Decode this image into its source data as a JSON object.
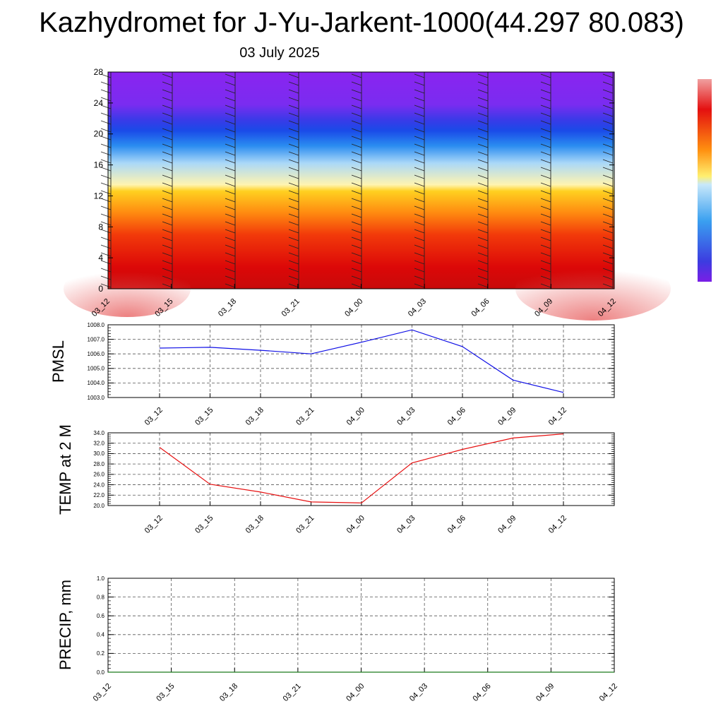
{
  "title": "Kazhydromet for J-Yu-Jarkent-1000(44.297 80.083)",
  "subtitle": "03 July 2025",
  "colors": {
    "pmsl_line": "#1010e6",
    "temp_line": "#e61010",
    "precip_line": "#1a7a1a",
    "grid": "#555555"
  },
  "chart_data": [
    {
      "type": "heatmap",
      "ylim": [
        0,
        28
      ],
      "yticks": [
        "0",
        "4",
        "8",
        "12",
        "16",
        "20",
        "24",
        "28"
      ],
      "x": [
        "03_12",
        "03_15",
        "03_18",
        "03_21",
        "04_00",
        "04_03",
        "04_06",
        "04_09",
        "04_12"
      ],
      "colorbar": "vertical, right, blue-violet (bottom) to red (top), no tick labels"
    },
    {
      "type": "line",
      "ylabel": "PMSL",
      "ylim": [
        1003.0,
        1008.0
      ],
      "yticks": [
        "1003.0",
        "1004.0",
        "1005.0",
        "1006.0",
        "1007.0",
        "1008.0"
      ],
      "x": [
        "03_12",
        "03_15",
        "03_18",
        "03_21",
        "04_00",
        "04_03",
        "04_06",
        "04_09",
        "04_12"
      ],
      "values": [
        1006.4,
        1006.45,
        1006.25,
        1006.0,
        1006.8,
        1007.65,
        1006.5,
        1004.2,
        1003.35
      ]
    },
    {
      "type": "line",
      "ylabel": "TEMP at 2 M",
      "ylim": [
        20.0,
        34.0
      ],
      "yticks": [
        "20.0",
        "22.0",
        "24.0",
        "26.0",
        "28.0",
        "30.0",
        "32.0",
        "34.0"
      ],
      "x": [
        "03_12",
        "03_15",
        "03_18",
        "03_21",
        "04_00",
        "04_03",
        "04_06",
        "04_09",
        "04_12"
      ],
      "values": [
        31.2,
        24.1,
        22.6,
        20.7,
        20.5,
        28.2,
        30.8,
        33.0,
        33.8
      ]
    },
    {
      "type": "line",
      "ylabel": "PRECIP, mm",
      "ylim": [
        0.0,
        1.0
      ],
      "yticks": [
        "0.0",
        "0.2",
        "0.4",
        "0.6",
        "0.8",
        "1.0"
      ],
      "x": [
        "03_12",
        "03_15",
        "03_18",
        "03_21",
        "04_00",
        "04_03",
        "04_06",
        "04_09",
        "04_12"
      ],
      "values": [
        0,
        0,
        0,
        0,
        0,
        0,
        0,
        0,
        0
      ]
    }
  ]
}
